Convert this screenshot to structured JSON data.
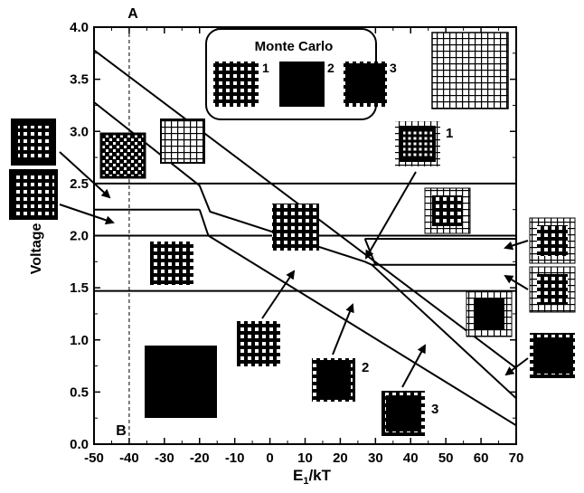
{
  "chart_data": {
    "type": "line",
    "xlabel": "E1/kT",
    "xlabel_main": "E",
    "xlabel_sub": "1",
    "xlabel_rest": "/kT",
    "ylabel": "Voltage (V)",
    "xlim": [
      -50,
      70
    ],
    "ylim": [
      0.0,
      4.0
    ],
    "x_ticks": [
      "-50",
      "-40",
      "-30",
      "-20",
      "-10",
      "0",
      "10",
      "20",
      "30",
      "40",
      "50",
      "60",
      "70"
    ],
    "y_ticks": [
      "0.0",
      "0.5",
      "1.0",
      "1.5",
      "2.0",
      "2.5",
      "3.0",
      "3.5",
      "4.0"
    ],
    "reference_line": {
      "x": -40,
      "label_top": "A",
      "label_bottom": "B",
      "style": "dashed"
    },
    "horizontal_lines": [
      2.5,
      2.25,
      2.0,
      1.97,
      1.72,
      1.47
    ],
    "series": [
      {
        "values": [
          [
            -50,
            3.78
          ],
          [
            70,
            0.73
          ]
        ]
      },
      {
        "values": [
          [
            -50,
            3.28
          ],
          [
            -20,
            2.48
          ],
          [
            -17,
            2.23
          ],
          [
            27,
            1.75
          ],
          [
            29,
            1.72
          ],
          [
            70,
            0.44
          ]
        ]
      },
      {
        "values": [
          [
            -20,
            2.25
          ],
          [
            -18,
            2.05
          ],
          [
            -17.5,
            2.0
          ],
          [
            70,
            0.18
          ]
        ]
      },
      {
        "values": [
          [
            27,
            1.97
          ],
          [
            30,
            1.72
          ]
        ]
      }
    ],
    "legend": {
      "title": "Monte Carlo",
      "items": [
        "1",
        "2",
        "3"
      ],
      "placement": "top-center"
    },
    "annotations": [
      "1",
      "2",
      "3"
    ],
    "grid": false
  },
  "colors": {
    "ink": "#000000",
    "background": "#ffffff"
  }
}
